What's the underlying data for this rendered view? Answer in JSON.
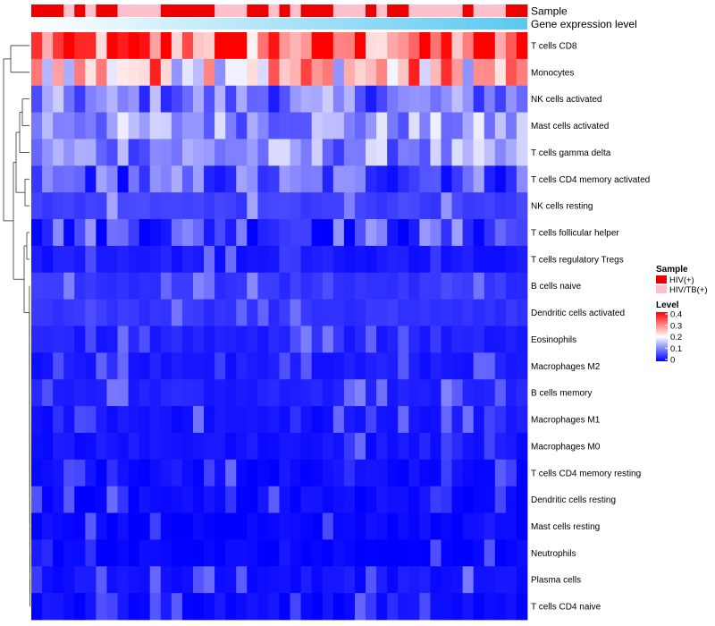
{
  "chart_data": {
    "type": "heatmap",
    "title": "",
    "n_columns": 46,
    "annotation_tracks": [
      "Sample",
      "Gene expression level"
    ],
    "sample_groups": [
      "HIV(+)",
      "HIV/TB(+)"
    ],
    "sample_per_column": [
      0,
      0,
      0,
      1,
      0,
      1,
      0,
      0,
      1,
      1,
      1,
      1,
      0,
      0,
      0,
      0,
      0,
      1,
      1,
      1,
      0,
      0,
      1,
      0,
      1,
      0,
      0,
      0,
      1,
      1,
      1,
      0,
      1,
      0,
      0,
      1,
      1,
      1,
      1,
      1,
      0,
      1,
      1,
      1,
      0,
      0
    ],
    "rows": [
      "T cells CD8",
      "Monocytes",
      "NK cells activated",
      "Mast cells activated",
      "T cells gamma delta",
      "T cells CD4 memory activated",
      "NK cells resting",
      "T cells follicular helper",
      "T cells regulatory  Tregs",
      "B cells naive",
      "Dendritic cells activated",
      "Eosinophils",
      "Macrophages M2",
      "B cells memory",
      "Macrophages M1",
      "Macrophages M0",
      "T cells CD4 memory resting",
      "Dendritic cells resting",
      "Mast cells resting",
      "Neutrophils",
      "Plasma cells",
      "T cells CD4 naive"
    ],
    "row_mean_level": [
      0.32,
      0.25,
      0.09,
      0.12,
      0.11,
      0.07,
      0.05,
      0.06,
      0.02,
      0.04,
      0.04,
      0.025,
      0.02,
      0.025,
      0.015,
      0.015,
      0.01,
      0.008,
      0.005,
      0.003,
      0.015,
      0.01
    ],
    "color_scale": {
      "min": 0,
      "max": 0.4,
      "low": "#0000ff",
      "mid": "#ffffff",
      "high": "#ff0000",
      "midpoint": 0.2
    },
    "legend": {
      "sample_title": "Sample",
      "sample_labels": [
        "HIV(+)",
        "HIV/TB(+)"
      ],
      "sample_colors": [
        "#ee0000",
        "#ffc0cb"
      ],
      "level_title": "Level",
      "level_ticks": [
        "0.4",
        "0.3",
        "0.2",
        "0.1",
        "0"
      ]
    },
    "expression_gradient": [
      "#ffffff",
      "#5bc8f0"
    ],
    "row_dendrogram": true
  }
}
